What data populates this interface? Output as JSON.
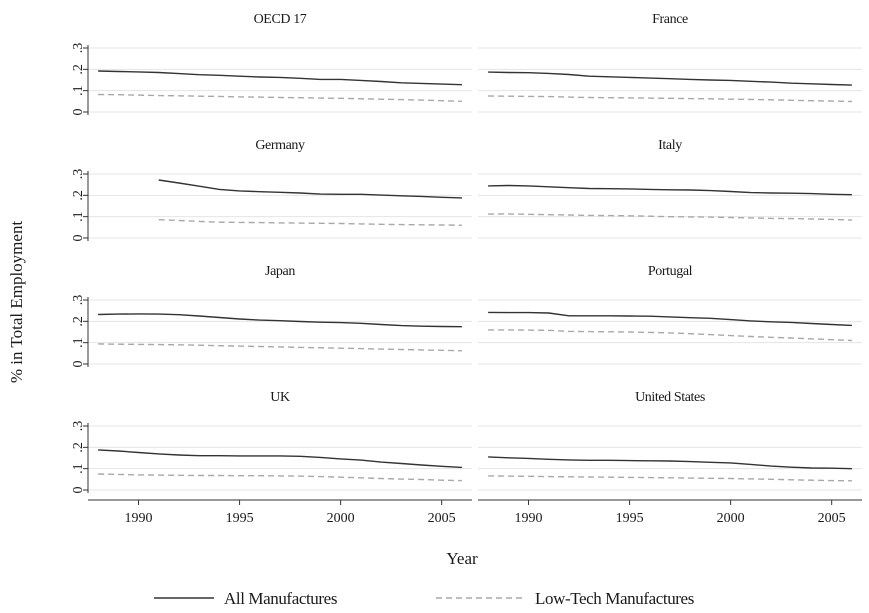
{
  "chart_data": {
    "type": "line",
    "ylabel": "% in Total Employment",
    "xlabel": "Year",
    "xlim": [
      1987.5,
      2006.5
    ],
    "ylim": [
      0,
      0.3
    ],
    "xticks": [
      1990,
      1995,
      2000,
      2005
    ],
    "xtick_labels": [
      "1990",
      "1995",
      "2000",
      "2005"
    ],
    "yticks": [
      0,
      0.1,
      0.2,
      0.3
    ],
    "ytick_labels": [
      "0",
      ".1",
      ".2",
      ".3"
    ],
    "grid": true,
    "legend": {
      "position": "bottom",
      "entries": [
        {
          "label": "All Manufactures",
          "style": "solid",
          "color": "#333333"
        },
        {
          "label": "Low-Tech Manufactures",
          "style": "dashed",
          "color": "#a8a8a8"
        }
      ]
    },
    "panels": [
      {
        "title": "OECD 17",
        "series": [
          {
            "name": "All Manufactures",
            "x": [
              1988,
              1989,
              1990,
              1991,
              1992,
              1993,
              1994,
              1995,
              1996,
              1997,
              1998,
              1999,
              2000,
              2001,
              2002,
              2003,
              2004,
              2005,
              2006
            ],
            "y": [
              0.192,
              0.19,
              0.188,
              0.185,
              0.18,
              0.175,
              0.172,
              0.168,
              0.164,
              0.162,
              0.158,
              0.153,
              0.153,
              0.148,
              0.143,
              0.137,
              0.134,
              0.131,
              0.128
            ]
          },
          {
            "name": "Low-Tech Manufactures",
            "x": [
              1988,
              1989,
              1990,
              1991,
              1992,
              1993,
              1994,
              1995,
              1996,
              1997,
              1998,
              1999,
              2000,
              2001,
              2002,
              2003,
              2004,
              2005,
              2006
            ],
            "y": [
              0.082,
              0.081,
              0.079,
              0.077,
              0.076,
              0.074,
              0.073,
              0.071,
              0.07,
              0.068,
              0.067,
              0.065,
              0.064,
              0.062,
              0.06,
              0.058,
              0.056,
              0.053,
              0.05
            ]
          }
        ]
      },
      {
        "title": "France",
        "series": [
          {
            "name": "All Manufactures",
            "x": [
              1988,
              1989,
              1990,
              1991,
              1992,
              1993,
              1994,
              1995,
              1996,
              1997,
              1998,
              1999,
              2000,
              2001,
              2002,
              2003,
              2004,
              2005,
              2006
            ],
            "y": [
              0.187,
              0.185,
              0.184,
              0.181,
              0.176,
              0.168,
              0.165,
              0.162,
              0.159,
              0.156,
              0.153,
              0.15,
              0.148,
              0.144,
              0.14,
              0.135,
              0.132,
              0.129,
              0.126
            ]
          },
          {
            "name": "Low-Tech Manufactures",
            "x": [
              1988,
              1989,
              1990,
              1991,
              1992,
              1993,
              1994,
              1995,
              1996,
              1997,
              1998,
              1999,
              2000,
              2001,
              2002,
              2003,
              2004,
              2005,
              2006
            ],
            "y": [
              0.075,
              0.074,
              0.073,
              0.072,
              0.07,
              0.068,
              0.067,
              0.066,
              0.065,
              0.064,
              0.063,
              0.062,
              0.06,
              0.059,
              0.057,
              0.055,
              0.053,
              0.051,
              0.049
            ]
          }
        ]
      },
      {
        "title": "Germany",
        "series": [
          {
            "name": "All Manufactures",
            "x": [
              1991,
              1992,
              1993,
              1994,
              1995,
              1996,
              1997,
              1998,
              1999,
              2000,
              2001,
              2002,
              2003,
              2004,
              2005,
              2006
            ],
            "y": [
              0.272,
              0.258,
              0.243,
              0.228,
              0.221,
              0.217,
              0.214,
              0.211,
              0.206,
              0.205,
              0.205,
              0.201,
              0.198,
              0.195,
              0.191,
              0.188
            ]
          },
          {
            "name": "Low-Tech Manufactures",
            "x": [
              1991,
              1992,
              1993,
              1994,
              1995,
              1996,
              1997,
              1998,
              1999,
              2000,
              2001,
              2002,
              2003,
              2004,
              2005,
              2006
            ],
            "y": [
              0.086,
              0.082,
              0.078,
              0.074,
              0.073,
              0.072,
              0.071,
              0.07,
              0.069,
              0.068,
              0.066,
              0.064,
              0.063,
              0.062,
              0.061,
              0.06
            ]
          }
        ]
      },
      {
        "title": "Italy",
        "series": [
          {
            "name": "All Manufactures",
            "x": [
              1988,
              1989,
              1990,
              1991,
              1992,
              1993,
              1994,
              1995,
              1996,
              1997,
              1998,
              1999,
              2000,
              2001,
              2002,
              2003,
              2004,
              2005,
              2006
            ],
            "y": [
              0.244,
              0.246,
              0.244,
              0.24,
              0.236,
              0.232,
              0.231,
              0.23,
              0.228,
              0.226,
              0.225,
              0.222,
              0.218,
              0.213,
              0.211,
              0.21,
              0.208,
              0.205,
              0.203
            ]
          },
          {
            "name": "Low-Tech Manufactures",
            "x": [
              1988,
              1989,
              1990,
              1991,
              1992,
              1993,
              1994,
              1995,
              1996,
              1997,
              1998,
              1999,
              2000,
              2001,
              2002,
              2003,
              2004,
              2005,
              2006
            ],
            "y": [
              0.112,
              0.113,
              0.111,
              0.109,
              0.108,
              0.106,
              0.105,
              0.104,
              0.102,
              0.1,
              0.099,
              0.098,
              0.096,
              0.094,
              0.092,
              0.091,
              0.089,
              0.087,
              0.084
            ]
          }
        ]
      },
      {
        "title": "Japan",
        "series": [
          {
            "name": "All Manufactures",
            "x": [
              1988,
              1989,
              1990,
              1991,
              1992,
              1993,
              1994,
              1995,
              1996,
              1997,
              1998,
              1999,
              2000,
              2001,
              2002,
              2003,
              2004,
              2005,
              2006
            ],
            "y": [
              0.232,
              0.234,
              0.235,
              0.234,
              0.231,
              0.225,
              0.218,
              0.211,
              0.206,
              0.203,
              0.199,
              0.196,
              0.194,
              0.191,
              0.185,
              0.18,
              0.177,
              0.176,
              0.175
            ]
          },
          {
            "name": "Low-Tech Manufactures",
            "x": [
              1988,
              1989,
              1990,
              1991,
              1992,
              1993,
              1994,
              1995,
              1996,
              1997,
              1998,
              1999,
              2000,
              2001,
              2002,
              2003,
              2004,
              2005,
              2006
            ],
            "y": [
              0.094,
              0.093,
              0.092,
              0.091,
              0.09,
              0.088,
              0.086,
              0.084,
              0.082,
              0.08,
              0.078,
              0.076,
              0.074,
              0.072,
              0.07,
              0.068,
              0.066,
              0.064,
              0.062
            ]
          }
        ]
      },
      {
        "title": "Portugal",
        "series": [
          {
            "name": "All Manufactures",
            "x": [
              1988,
              1989,
              1990,
              1991,
              1992,
              1993,
              1994,
              1995,
              1996,
              1997,
              1998,
              1999,
              2000,
              2001,
              2002,
              2003,
              2004,
              2005,
              2006
            ],
            "y": [
              0.242,
              0.241,
              0.241,
              0.239,
              0.226,
              0.226,
              0.226,
              0.225,
              0.224,
              0.221,
              0.217,
              0.214,
              0.208,
              0.202,
              0.198,
              0.195,
              0.19,
              0.185,
              0.181
            ]
          },
          {
            "name": "Low-Tech Manufactures",
            "x": [
              1988,
              1989,
              1990,
              1991,
              1992,
              1993,
              1994,
              1995,
              1996,
              1997,
              1998,
              1999,
              2000,
              2001,
              2002,
              2003,
              2004,
              2005,
              2006
            ],
            "y": [
              0.16,
              0.16,
              0.159,
              0.158,
              0.153,
              0.152,
              0.151,
              0.15,
              0.148,
              0.146,
              0.142,
              0.138,
              0.133,
              0.129,
              0.125,
              0.122,
              0.118,
              0.114,
              0.11
            ]
          }
        ]
      },
      {
        "title": "UK",
        "series": [
          {
            "name": "All Manufactures",
            "x": [
              1988,
              1989,
              1990,
              1991,
              1992,
              1993,
              1994,
              1995,
              1996,
              1997,
              1998,
              1999,
              2000,
              2001,
              2002,
              2003,
              2004,
              2005,
              2006
            ],
            "y": [
              0.188,
              0.183,
              0.176,
              0.169,
              0.164,
              0.161,
              0.161,
              0.16,
              0.16,
              0.16,
              0.158,
              0.153,
              0.146,
              0.14,
              0.131,
              0.124,
              0.117,
              0.111,
              0.106
            ]
          },
          {
            "name": "Low-Tech Manufactures",
            "x": [
              1988,
              1989,
              1990,
              1991,
              1992,
              1993,
              1994,
              1995,
              1996,
              1997,
              1998,
              1999,
              2000,
              2001,
              2002,
              2003,
              2004,
              2005,
              2006
            ],
            "y": [
              0.075,
              0.073,
              0.071,
              0.07,
              0.069,
              0.068,
              0.068,
              0.067,
              0.067,
              0.066,
              0.065,
              0.063,
              0.06,
              0.057,
              0.054,
              0.051,
              0.049,
              0.046,
              0.044
            ]
          }
        ]
      },
      {
        "title": "United States",
        "series": [
          {
            "name": "All Manufactures",
            "x": [
              1988,
              1989,
              1990,
              1991,
              1992,
              1993,
              1994,
              1995,
              1996,
              1997,
              1998,
              1999,
              2000,
              2001,
              2002,
              2003,
              2004,
              2005,
              2006
            ],
            "y": [
              0.155,
              0.151,
              0.148,
              0.144,
              0.141,
              0.139,
              0.139,
              0.138,
              0.137,
              0.136,
              0.133,
              0.13,
              0.127,
              0.12,
              0.112,
              0.107,
              0.103,
              0.102,
              0.1
            ]
          },
          {
            "name": "Low-Tech Manufactures",
            "x": [
              1988,
              1989,
              1990,
              1991,
              1992,
              1993,
              1994,
              1995,
              1996,
              1997,
              1998,
              1999,
              2000,
              2001,
              2002,
              2003,
              2004,
              2005,
              2006
            ],
            "y": [
              0.066,
              0.065,
              0.064,
              0.063,
              0.062,
              0.061,
              0.06,
              0.059,
              0.058,
              0.057,
              0.056,
              0.055,
              0.054,
              0.052,
              0.05,
              0.048,
              0.046,
              0.044,
              0.043
            ]
          }
        ]
      }
    ]
  }
}
